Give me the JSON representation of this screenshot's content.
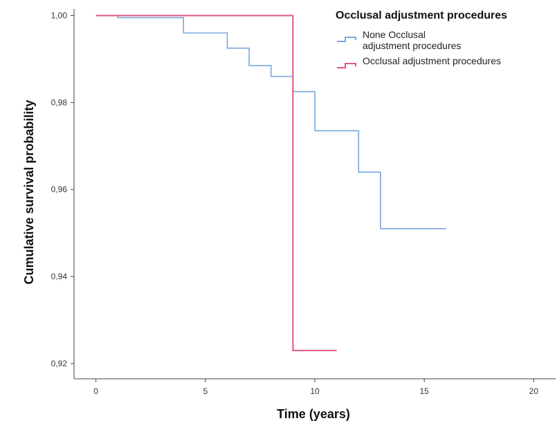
{
  "chart_data": {
    "type": "line",
    "step": true,
    "xlabel": "Time (years)",
    "ylabel": "Cumulative survival probability",
    "xlim": [
      -1,
      21
    ],
    "ylim": [
      0.9165,
      1.0015
    ],
    "xticks": [
      0,
      5,
      10,
      15,
      20
    ],
    "yticks": [
      0.92,
      0.94,
      0.96,
      0.98,
      1.0
    ],
    "xtick_labels": [
      "0",
      "5",
      "10",
      "15",
      "20"
    ],
    "ytick_labels": [
      "0,92",
      "0,94",
      "0,96",
      "0,98",
      "1,00"
    ],
    "grid": false,
    "legend": {
      "title": "Occlusal adjustment procedures",
      "position": "top-right",
      "entries": [
        {
          "lines": [
            "None Occlusal",
            "adjustment procedures"
          ],
          "color": "#7aa7e0"
        },
        {
          "lines": [
            "Occlusal adjustment procedures"
          ],
          "color": "#e0557a"
        }
      ]
    },
    "series": [
      {
        "name": "None Occlusal adjustment procedures",
        "color": "#7aa7e0",
        "x": [
          0,
          1,
          4,
          6,
          7,
          8,
          9,
          10,
          12,
          13,
          16
        ],
        "y": [
          1.0,
          0.9995,
          0.996,
          0.9925,
          0.9885,
          0.986,
          0.9825,
          0.9735,
          0.964,
          0.951,
          0.951
        ]
      },
      {
        "name": "Occlusal adjustment procedures",
        "color": "#e0557a",
        "x": [
          0,
          9,
          11
        ],
        "y": [
          1.0,
          0.923,
          0.923
        ]
      }
    ]
  }
}
